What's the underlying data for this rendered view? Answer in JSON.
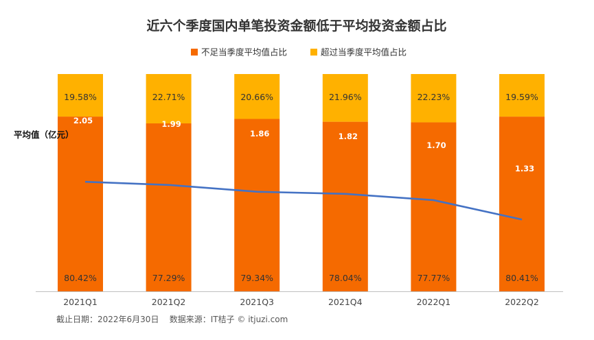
{
  "chart_data": {
    "type": "bar",
    "stacked": true,
    "percent_stacked": true,
    "title": "近六个季度国内单笔投资金额低于平均投资金额占比",
    "categories": [
      "2021Q1",
      "2021Q2",
      "2021Q3",
      "2021Q4",
      "2022Q1",
      "2022Q2"
    ],
    "series": [
      {
        "name": "不足当季度平均值占比",
        "color": "#F56A00",
        "values": [
          80.42,
          77.29,
          79.34,
          78.04,
          77.77,
          80.41
        ],
        "labels": [
          "80.42%",
          "77.29%",
          "79.34%",
          "78.04%",
          "77.77%",
          "80.41%"
        ]
      },
      {
        "name": "超过当季度平均值占比",
        "color": "#FFB100",
        "values": [
          19.58,
          22.71,
          20.66,
          21.96,
          22.23,
          19.59
        ],
        "labels": [
          "19.58%",
          "22.71%",
          "20.66%",
          "21.96%",
          "22.23%",
          "19.59%"
        ]
      }
    ],
    "line": {
      "name": "平均值（亿元）",
      "color": "#4472C4",
      "values": [
        2.05,
        1.99,
        1.86,
        1.82,
        1.7,
        1.33
      ],
      "labels": [
        "2.05",
        "1.99",
        "1.86",
        "1.82",
        "1.70",
        "1.33"
      ]
    },
    "ylim": [
      0,
      100
    ],
    "grid": false,
    "legend_position": "top-center"
  },
  "footer": {
    "note": "截止日期：2022年6月30日    数据来源：IT桔子 © itjuzi.com"
  }
}
